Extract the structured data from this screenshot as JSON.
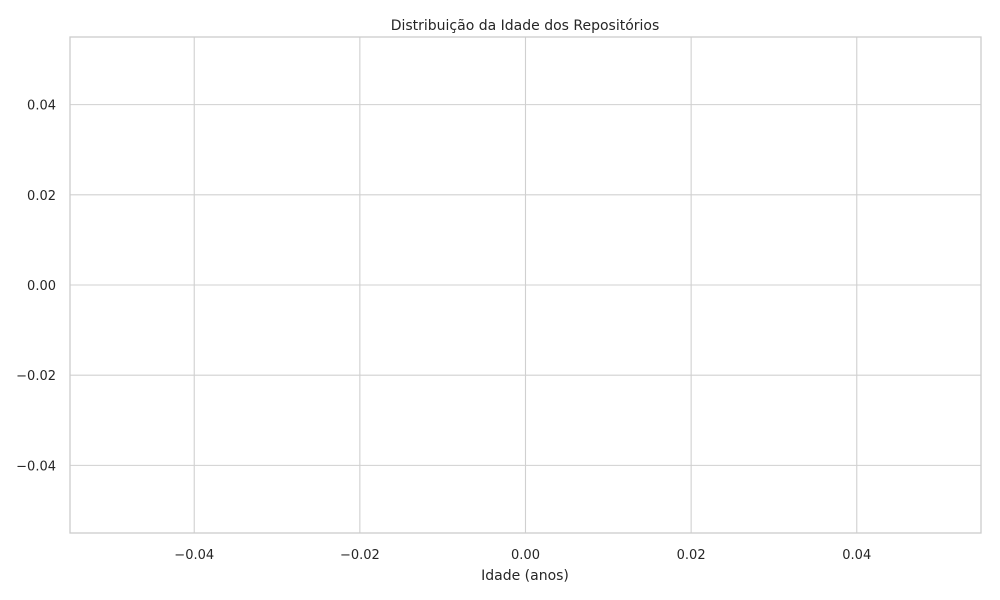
{
  "chart_data": {
    "type": "bar",
    "title": "Distribuição da Idade dos Repositórios",
    "xlabel": "Idade (anos)",
    "ylabel": "",
    "xlim": [
      -0.055,
      0.055
    ],
    "ylim": [
      -0.055,
      0.055
    ],
    "x_ticks": [
      -0.04,
      -0.02,
      0.0,
      0.02,
      0.04
    ],
    "x_tick_labels": [
      "−0.04",
      "−0.02",
      "0.00",
      "0.02",
      "0.04"
    ],
    "y_ticks": [
      0.04,
      0.02,
      0.0,
      -0.02,
      -0.04
    ],
    "y_tick_labels": [
      "0.04",
      "0.02",
      "0.00",
      "−0.02",
      "−0.04"
    ],
    "values": [],
    "grid": true,
    "legend": "none",
    "colors": {
      "grid": "#d0d0d0",
      "frame": "#cccccc",
      "text": "#262626",
      "background": "#ffffff"
    }
  }
}
